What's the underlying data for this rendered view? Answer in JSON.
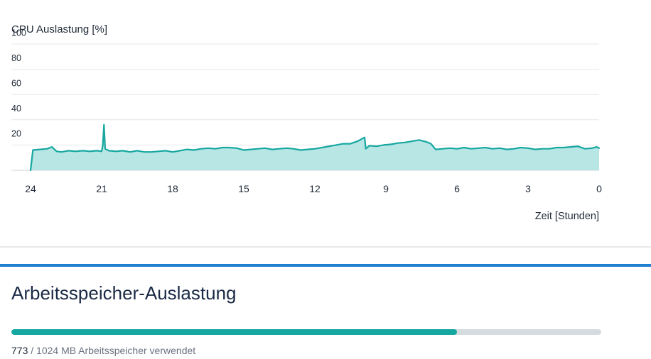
{
  "cpu_panel": {
    "chart_data": {
      "type": "area",
      "title": "",
      "ylabel": "CPU Auslastung [%]",
      "xlabel": "Zeit [Stunden]",
      "ylim": [
        0,
        100
      ],
      "xlim": [
        24,
        0
      ],
      "y_ticks": [
        "20",
        "40",
        "60",
        "80",
        "100"
      ],
      "x_ticks": [
        "24",
        "21",
        "18",
        "15",
        "12",
        "9",
        "6",
        "3",
        "0"
      ],
      "grid": true,
      "legend": "none",
      "colors": {
        "line": "#16a7a0",
        "fill": "#b8e6e4",
        "grid": "#e4e7ea"
      },
      "series": [
        {
          "x": [
            24,
            23.9,
            23.6,
            23.3,
            23.1,
            22.9,
            22.7,
            22.4,
            22.1,
            21.8,
            21.5,
            21.2,
            21.0,
            20.95,
            20.9,
            20.85,
            20.7,
            20.4,
            20.1,
            19.8,
            19.5,
            19.2,
            18.9,
            18.6,
            18.3,
            18.0,
            17.7,
            17.4,
            17.1,
            16.8,
            16.5,
            16.2,
            15.9,
            15.6,
            15.3,
            15.0,
            14.7,
            14.4,
            14.1,
            13.8,
            13.5,
            13.2,
            12.9,
            12.6,
            12.3,
            12.0,
            11.7,
            11.4,
            11.1,
            10.8,
            10.5,
            10.2,
            9.9,
            9.85,
            9.7,
            9.4,
            9.1,
            8.8,
            8.5,
            8.2,
            7.9,
            7.6,
            7.3,
            7.1,
            6.9,
            6.6,
            6.3,
            6.0,
            5.7,
            5.4,
            5.1,
            4.8,
            4.5,
            4.2,
            3.9,
            3.6,
            3.3,
            3.0,
            2.7,
            2.4,
            2.1,
            1.8,
            1.5,
            1.2,
            0.9,
            0.6,
            0.3,
            0.1,
            0
          ],
          "values": [
            0,
            16,
            16.5,
            17,
            18.5,
            15,
            14.5,
            15.5,
            15,
            15.5,
            15,
            15.5,
            15,
            20,
            36,
            17,
            15.5,
            15,
            15.5,
            14.5,
            15.5,
            14.5,
            14.5,
            15,
            15.5,
            14.5,
            15.5,
            16.5,
            16,
            17,
            17.5,
            17,
            18,
            18,
            17.5,
            16,
            16.5,
            17,
            17.5,
            16.5,
            17,
            17.5,
            17,
            16,
            16.5,
            17,
            18,
            19,
            20,
            21,
            21,
            23,
            26,
            17,
            19.5,
            19,
            20,
            20.5,
            21.5,
            22,
            23,
            24,
            22.5,
            21,
            16.5,
            17,
            17.5,
            17,
            18,
            17,
            17.5,
            18,
            17,
            17.5,
            16.5,
            17,
            18,
            17.5,
            16.5,
            17,
            17,
            18,
            18,
            18.5,
            19,
            17,
            17.5,
            18.5,
            17.5
          ]
        }
      ]
    }
  },
  "memory": {
    "title": "Arbeitsspeicher-Auslastung",
    "used": "773",
    "caption_rest": "/ 1024 MB Arbeitsspeicher verwendet",
    "fraction": 0.755,
    "colors": {
      "track": "#d5dcdf",
      "fill": "#16a7a0",
      "accent_bar": "#1f7fd0"
    }
  }
}
